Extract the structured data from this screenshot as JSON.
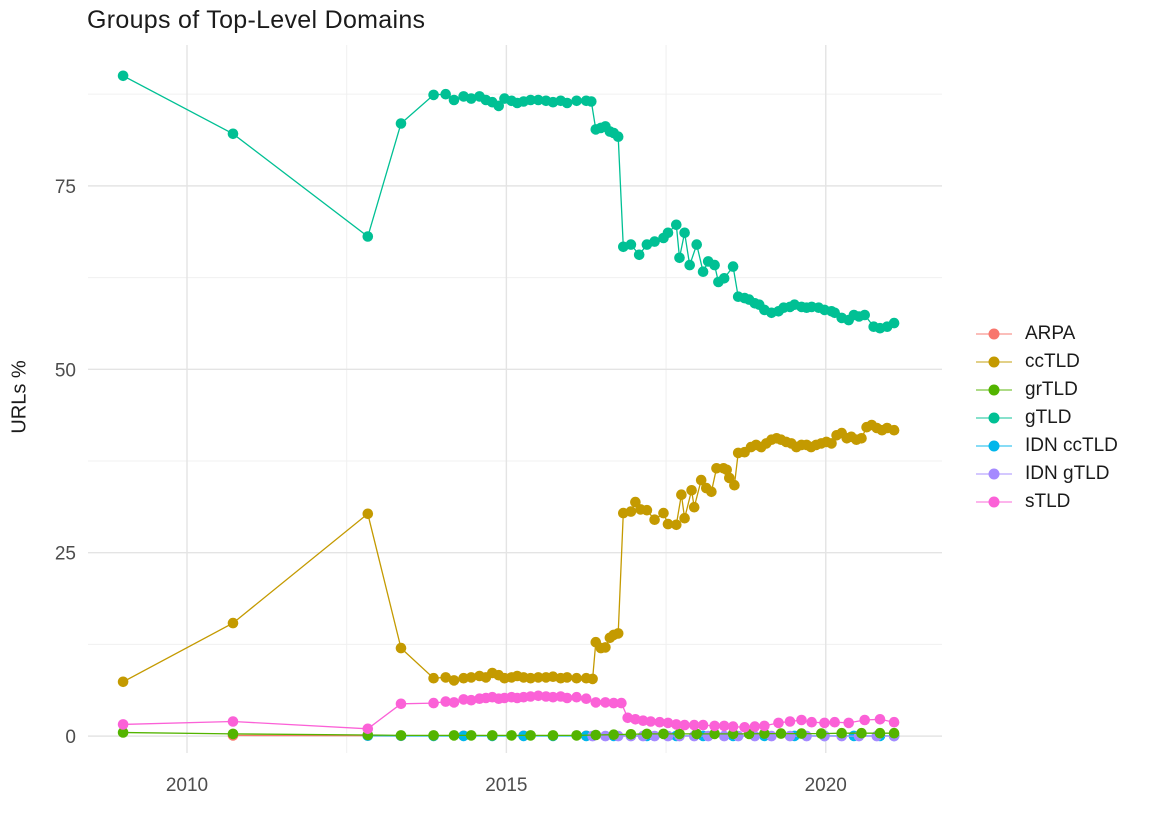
{
  "chart_data": {
    "type": "line",
    "title": "Groups of Top-Level Domains",
    "xlabel": "",
    "ylabel": "URLs %",
    "xlim": [
      2008.45,
      2021.82
    ],
    "ylim": [
      -2.3,
      94.2
    ],
    "x_ticks": [
      "2010",
      "2015",
      "2020"
    ],
    "x_tick_values": [
      2010,
      2015,
      2020
    ],
    "x_minor_ticks": [
      2012.5,
      2017.5
    ],
    "y_ticks": [
      "0",
      "25",
      "50",
      "75"
    ],
    "y_tick_values": [
      0,
      25,
      50,
      75
    ],
    "y_minor_ticks": [
      12.5,
      37.5,
      62.5,
      87.5
    ],
    "grid": "major+minor",
    "legend_position": "right",
    "draw_order": [
      "ARPA",
      "IDN ccTLD",
      "IDN gTLD",
      "grTLD",
      "ccTLD",
      "gTLD",
      "sTLD"
    ],
    "series": [
      {
        "name": "ARPA",
        "color": "#F8766D",
        "points": [
          [
            2010.72,
            0.1
          ],
          [
            2012.83,
            0.07
          ],
          [
            2013.35,
            0.05
          ],
          [
            2013.86,
            0.05
          ],
          [
            2014.33,
            0.05
          ],
          [
            2014.78,
            0.05
          ],
          [
            2015.27,
            0.05
          ],
          [
            2015.73,
            0.05
          ],
          [
            2016.25,
            0.05
          ]
        ]
      },
      {
        "name": "ccTLD",
        "color": "#C49A00",
        "points": [
          [
            2009.0,
            7.4
          ],
          [
            2010.72,
            15.4
          ],
          [
            2012.83,
            30.3
          ],
          [
            2013.35,
            12.0
          ],
          [
            2013.86,
            7.9
          ],
          [
            2014.05,
            8.0
          ],
          [
            2014.18,
            7.6
          ],
          [
            2014.33,
            7.9
          ],
          [
            2014.45,
            8.0
          ],
          [
            2014.58,
            8.2
          ],
          [
            2014.68,
            8.0
          ],
          [
            2014.78,
            8.6
          ],
          [
            2014.88,
            8.3
          ],
          [
            2014.97,
            7.9
          ],
          [
            2015.08,
            8.0
          ],
          [
            2015.17,
            8.2
          ],
          [
            2015.27,
            8.0
          ],
          [
            2015.38,
            7.9
          ],
          [
            2015.5,
            8.0
          ],
          [
            2015.62,
            8.0
          ],
          [
            2015.73,
            8.1
          ],
          [
            2015.85,
            7.9
          ],
          [
            2015.95,
            8.0
          ],
          [
            2016.1,
            7.9
          ],
          [
            2016.25,
            7.9
          ],
          [
            2016.35,
            7.8
          ],
          [
            2016.4,
            12.8
          ],
          [
            2016.48,
            12.0
          ],
          [
            2016.55,
            12.1
          ],
          [
            2016.62,
            13.4
          ],
          [
            2016.68,
            13.8
          ],
          [
            2016.75,
            14.0
          ],
          [
            2016.83,
            30.4
          ],
          [
            2016.95,
            30.6
          ],
          [
            2017.02,
            31.9
          ],
          [
            2017.1,
            30.9
          ],
          [
            2017.2,
            30.8
          ],
          [
            2017.32,
            29.5
          ],
          [
            2017.46,
            30.4
          ],
          [
            2017.53,
            28.9
          ],
          [
            2017.66,
            28.8
          ],
          [
            2017.74,
            32.9
          ],
          [
            2017.79,
            29.7
          ],
          [
            2017.9,
            33.5
          ],
          [
            2017.94,
            31.2
          ],
          [
            2018.05,
            34.9
          ],
          [
            2018.13,
            33.8
          ],
          [
            2018.21,
            33.3
          ],
          [
            2018.29,
            36.5
          ],
          [
            2018.4,
            36.5
          ],
          [
            2018.45,
            36.3
          ],
          [
            2018.49,
            35.2
          ],
          [
            2018.57,
            34.2
          ],
          [
            2018.63,
            38.6
          ],
          [
            2018.73,
            38.7
          ],
          [
            2018.83,
            39.4
          ],
          [
            2018.91,
            39.7
          ],
          [
            2018.99,
            39.4
          ],
          [
            2019.07,
            39.9
          ],
          [
            2019.15,
            40.4
          ],
          [
            2019.23,
            40.6
          ],
          [
            2019.3,
            40.4
          ],
          [
            2019.38,
            40.1
          ],
          [
            2019.46,
            39.9
          ],
          [
            2019.54,
            39.4
          ],
          [
            2019.62,
            39.7
          ],
          [
            2019.7,
            39.7
          ],
          [
            2019.77,
            39.4
          ],
          [
            2019.85,
            39.7
          ],
          [
            2019.93,
            39.9
          ],
          [
            2020.01,
            40.1
          ],
          [
            2020.09,
            39.9
          ],
          [
            2020.17,
            41.0
          ],
          [
            2020.25,
            41.3
          ],
          [
            2020.33,
            40.6
          ],
          [
            2020.4,
            40.8
          ],
          [
            2020.48,
            40.4
          ],
          [
            2020.56,
            40.6
          ],
          [
            2020.64,
            42.1
          ],
          [
            2020.72,
            42.4
          ],
          [
            2020.8,
            42.0
          ],
          [
            2020.88,
            41.7
          ],
          [
            2020.96,
            42.0
          ],
          [
            2021.07,
            41.7
          ]
        ]
      },
      {
        "name": "grTLD",
        "color": "#53B400",
        "points": [
          [
            2009.0,
            0.5
          ],
          [
            2010.72,
            0.3
          ],
          [
            2012.83,
            0.15
          ],
          [
            2013.35,
            0.1
          ],
          [
            2013.86,
            0.1
          ],
          [
            2014.18,
            0.1
          ],
          [
            2014.45,
            0.1
          ],
          [
            2014.78,
            0.1
          ],
          [
            2015.08,
            0.1
          ],
          [
            2015.38,
            0.1
          ],
          [
            2015.73,
            0.1
          ],
          [
            2016.1,
            0.1
          ],
          [
            2016.4,
            0.15
          ],
          [
            2016.68,
            0.2
          ],
          [
            2016.95,
            0.25
          ],
          [
            2017.2,
            0.3
          ],
          [
            2017.46,
            0.3
          ],
          [
            2017.71,
            0.3
          ],
          [
            2017.98,
            0.3
          ],
          [
            2018.26,
            0.3
          ],
          [
            2018.55,
            0.3
          ],
          [
            2018.8,
            0.3
          ],
          [
            2019.04,
            0.35
          ],
          [
            2019.3,
            0.35
          ],
          [
            2019.62,
            0.35
          ],
          [
            2019.93,
            0.35
          ],
          [
            2020.25,
            0.4
          ],
          [
            2020.56,
            0.4
          ],
          [
            2020.85,
            0.4
          ],
          [
            2021.07,
            0.4
          ]
        ]
      },
      {
        "name": "gTLD",
        "color": "#00C094",
        "points": [
          [
            2009.0,
            90.0
          ],
          [
            2010.72,
            82.1
          ],
          [
            2012.83,
            68.1
          ],
          [
            2013.35,
            83.5
          ],
          [
            2013.86,
            87.4
          ],
          [
            2014.05,
            87.5
          ],
          [
            2014.18,
            86.7
          ],
          [
            2014.33,
            87.2
          ],
          [
            2014.45,
            86.9
          ],
          [
            2014.58,
            87.2
          ],
          [
            2014.68,
            86.7
          ],
          [
            2014.78,
            86.4
          ],
          [
            2014.88,
            85.9
          ],
          [
            2014.97,
            86.9
          ],
          [
            2015.08,
            86.6
          ],
          [
            2015.17,
            86.3
          ],
          [
            2015.27,
            86.5
          ],
          [
            2015.38,
            86.7
          ],
          [
            2015.5,
            86.7
          ],
          [
            2015.62,
            86.6
          ],
          [
            2015.73,
            86.4
          ],
          [
            2015.85,
            86.6
          ],
          [
            2015.95,
            86.3
          ],
          [
            2016.1,
            86.6
          ],
          [
            2016.25,
            86.6
          ],
          [
            2016.33,
            86.5
          ],
          [
            2016.4,
            82.7
          ],
          [
            2016.48,
            82.9
          ],
          [
            2016.55,
            83.1
          ],
          [
            2016.62,
            82.4
          ],
          [
            2016.68,
            82.2
          ],
          [
            2016.75,
            81.7
          ],
          [
            2016.83,
            66.7
          ],
          [
            2016.95,
            67.0
          ],
          [
            2017.08,
            65.6
          ],
          [
            2017.2,
            67.0
          ],
          [
            2017.32,
            67.4
          ],
          [
            2017.46,
            67.9
          ],
          [
            2017.53,
            68.6
          ],
          [
            2017.66,
            69.7
          ],
          [
            2017.71,
            65.2
          ],
          [
            2017.79,
            68.6
          ],
          [
            2017.87,
            64.2
          ],
          [
            2017.98,
            67.0
          ],
          [
            2018.08,
            63.3
          ],
          [
            2018.16,
            64.7
          ],
          [
            2018.26,
            64.2
          ],
          [
            2018.32,
            61.9
          ],
          [
            2018.41,
            62.4
          ],
          [
            2018.55,
            64.0
          ],
          [
            2018.63,
            59.9
          ],
          [
            2018.73,
            59.7
          ],
          [
            2018.8,
            59.5
          ],
          [
            2018.89,
            59.0
          ],
          [
            2018.96,
            58.8
          ],
          [
            2019.04,
            58.1
          ],
          [
            2019.15,
            57.7
          ],
          [
            2019.26,
            57.9
          ],
          [
            2019.34,
            58.4
          ],
          [
            2019.44,
            58.5
          ],
          [
            2019.51,
            58.8
          ],
          [
            2019.62,
            58.5
          ],
          [
            2019.7,
            58.4
          ],
          [
            2019.78,
            58.5
          ],
          [
            2019.89,
            58.4
          ],
          [
            2019.98,
            58.1
          ],
          [
            2020.09,
            57.9
          ],
          [
            2020.14,
            57.7
          ],
          [
            2020.25,
            57.0
          ],
          [
            2020.36,
            56.7
          ],
          [
            2020.44,
            57.4
          ],
          [
            2020.52,
            57.2
          ],
          [
            2020.61,
            57.4
          ],
          [
            2020.75,
            55.8
          ],
          [
            2020.85,
            55.6
          ],
          [
            2020.96,
            55.8
          ],
          [
            2021.07,
            56.3
          ]
        ]
      },
      {
        "name": "IDN ccTLD",
        "color": "#00B6EB",
        "points": [
          [
            2012.83,
            0.06
          ],
          [
            2013.35,
            0.04
          ],
          [
            2013.86,
            0.03
          ],
          [
            2014.33,
            0.03
          ],
          [
            2014.78,
            0.03
          ],
          [
            2015.27,
            0.03
          ],
          [
            2015.73,
            0.03
          ],
          [
            2016.25,
            0.03
          ],
          [
            2016.68,
            0.03
          ],
          [
            2017.2,
            0.03
          ],
          [
            2017.66,
            0.03
          ],
          [
            2018.08,
            0.03
          ],
          [
            2018.55,
            0.03
          ],
          [
            2019.04,
            0.03
          ],
          [
            2019.51,
            0.03
          ],
          [
            2019.98,
            0.03
          ],
          [
            2020.44,
            0.03
          ],
          [
            2020.85,
            0.03
          ],
          [
            2021.07,
            0.03
          ]
        ]
      },
      {
        "name": "IDN gTLD",
        "color": "#A58AFF",
        "points": [
          [
            2016.35,
            0.0
          ],
          [
            2016.55,
            0.0
          ],
          [
            2016.75,
            0.0
          ],
          [
            2016.95,
            0.0
          ],
          [
            2017.14,
            0.0
          ],
          [
            2017.32,
            0.0
          ],
          [
            2017.53,
            0.0
          ],
          [
            2017.71,
            0.0
          ],
          [
            2017.94,
            0.0
          ],
          [
            2018.16,
            0.0
          ],
          [
            2018.41,
            0.0
          ],
          [
            2018.63,
            0.0
          ],
          [
            2018.89,
            0.0
          ],
          [
            2019.15,
            0.0
          ],
          [
            2019.44,
            0.0
          ],
          [
            2019.7,
            0.0
          ],
          [
            2019.98,
            0.0
          ],
          [
            2020.25,
            0.0
          ],
          [
            2020.52,
            0.0
          ],
          [
            2020.8,
            0.0
          ],
          [
            2021.07,
            0.0
          ]
        ]
      },
      {
        "name": "sTLD",
        "color": "#FB61D7",
        "points": [
          [
            2009.0,
            1.6
          ],
          [
            2010.72,
            2.0
          ],
          [
            2012.83,
            1.0
          ],
          [
            2013.35,
            4.4
          ],
          [
            2013.86,
            4.5
          ],
          [
            2014.05,
            4.7
          ],
          [
            2014.18,
            4.6
          ],
          [
            2014.33,
            5.0
          ],
          [
            2014.45,
            4.9
          ],
          [
            2014.58,
            5.1
          ],
          [
            2014.68,
            5.2
          ],
          [
            2014.78,
            5.3
          ],
          [
            2014.88,
            5.1
          ],
          [
            2014.97,
            5.2
          ],
          [
            2015.08,
            5.3
          ],
          [
            2015.17,
            5.2
          ],
          [
            2015.27,
            5.3
          ],
          [
            2015.38,
            5.4
          ],
          [
            2015.5,
            5.5
          ],
          [
            2015.62,
            5.4
          ],
          [
            2015.73,
            5.3
          ],
          [
            2015.85,
            5.4
          ],
          [
            2015.95,
            5.2
          ],
          [
            2016.1,
            5.3
          ],
          [
            2016.25,
            5.1
          ],
          [
            2016.4,
            4.6
          ],
          [
            2016.55,
            4.6
          ],
          [
            2016.68,
            4.5
          ],
          [
            2016.8,
            4.5
          ],
          [
            2016.9,
            2.5
          ],
          [
            2017.02,
            2.3
          ],
          [
            2017.14,
            2.1
          ],
          [
            2017.26,
            2.0
          ],
          [
            2017.4,
            1.9
          ],
          [
            2017.53,
            1.8
          ],
          [
            2017.66,
            1.6
          ],
          [
            2017.79,
            1.5
          ],
          [
            2017.94,
            1.5
          ],
          [
            2018.08,
            1.5
          ],
          [
            2018.26,
            1.4
          ],
          [
            2018.41,
            1.4
          ],
          [
            2018.55,
            1.3
          ],
          [
            2018.73,
            1.2
          ],
          [
            2018.89,
            1.3
          ],
          [
            2019.04,
            1.4
          ],
          [
            2019.26,
            1.8
          ],
          [
            2019.44,
            2.0
          ],
          [
            2019.62,
            2.2
          ],
          [
            2019.78,
            1.9
          ],
          [
            2019.98,
            1.8
          ],
          [
            2020.14,
            1.9
          ],
          [
            2020.36,
            1.8
          ],
          [
            2020.61,
            2.2
          ],
          [
            2020.85,
            2.3
          ],
          [
            2021.07,
            1.9
          ]
        ]
      }
    ]
  }
}
